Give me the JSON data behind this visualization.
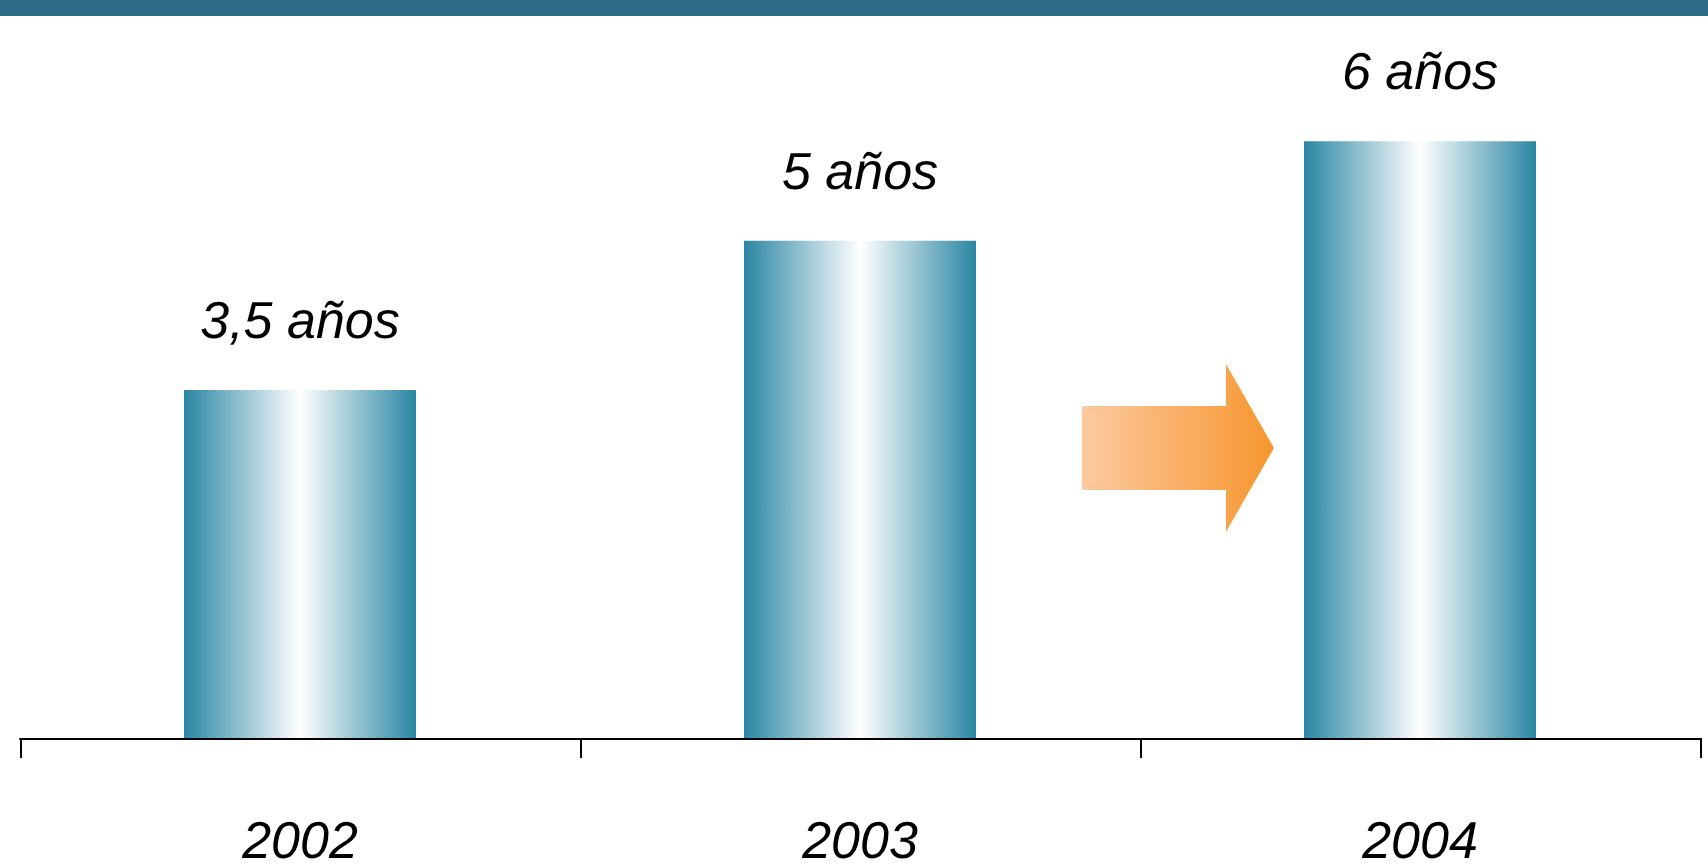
{
  "chart_data": {
    "type": "bar",
    "categories": [
      "2002",
      "2003",
      "2004"
    ],
    "values": [
      3.5,
      5,
      6
    ],
    "value_labels": [
      "3,5 años",
      "5 años",
      "6 años"
    ],
    "color": "#2a86a3"
  }
}
